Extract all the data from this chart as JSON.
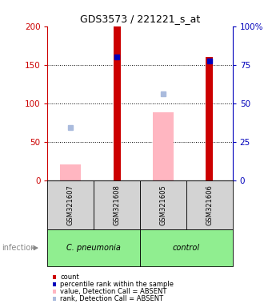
{
  "title": "GDS3573 / 221221_s_at",
  "samples": [
    "GSM321607",
    "GSM321608",
    "GSM321605",
    "GSM321606"
  ],
  "groups": [
    {
      "label": "C. pneumonia",
      "color": "#90EE90",
      "span": [
        0,
        2
      ]
    },
    {
      "label": "control",
      "color": "#90EE90",
      "span": [
        2,
        4
      ]
    }
  ],
  "count_values": [
    0,
    200,
    0,
    160
  ],
  "count_color": "#CC0000",
  "count_bar_width": 0.15,
  "value_absent": [
    20,
    0,
    88,
    0
  ],
  "value_absent_color": "#FFB6C1",
  "value_bar_width": 0.45,
  "percentile_rank_left_scale": [
    null,
    160,
    null,
    155
  ],
  "percentile_rank_color": "#0000BB",
  "rank_absent_left_scale": [
    68,
    null,
    112,
    null
  ],
  "rank_absent_color": "#AABBDD",
  "ylim_left": [
    0,
    200
  ],
  "ylim_right": [
    0,
    100
  ],
  "yticks_left": [
    0,
    50,
    100,
    150,
    200
  ],
  "ytick_labels_left": [
    "0",
    "50",
    "100",
    "150",
    "200"
  ],
  "yticks_right": [
    0,
    25,
    50,
    75,
    100
  ],
  "ytick_labels_right": [
    "0",
    "25",
    "50",
    "75",
    "100%"
  ],
  "left_axis_color": "#CC0000",
  "right_axis_color": "#0000BB",
  "grid_dotted_at": [
    50,
    100,
    150
  ],
  "background_color": "#ffffff",
  "sample_label_bg": "#d3d3d3",
  "legend_items": [
    {
      "color": "#CC0000",
      "label": "count"
    },
    {
      "color": "#0000BB",
      "label": "percentile rank within the sample"
    },
    {
      "color": "#FFB6C1",
      "label": "value, Detection Call = ABSENT"
    },
    {
      "color": "#AABBDD",
      "label": "rank, Detection Call = ABSENT"
    }
  ],
  "infection_label": "infection"
}
